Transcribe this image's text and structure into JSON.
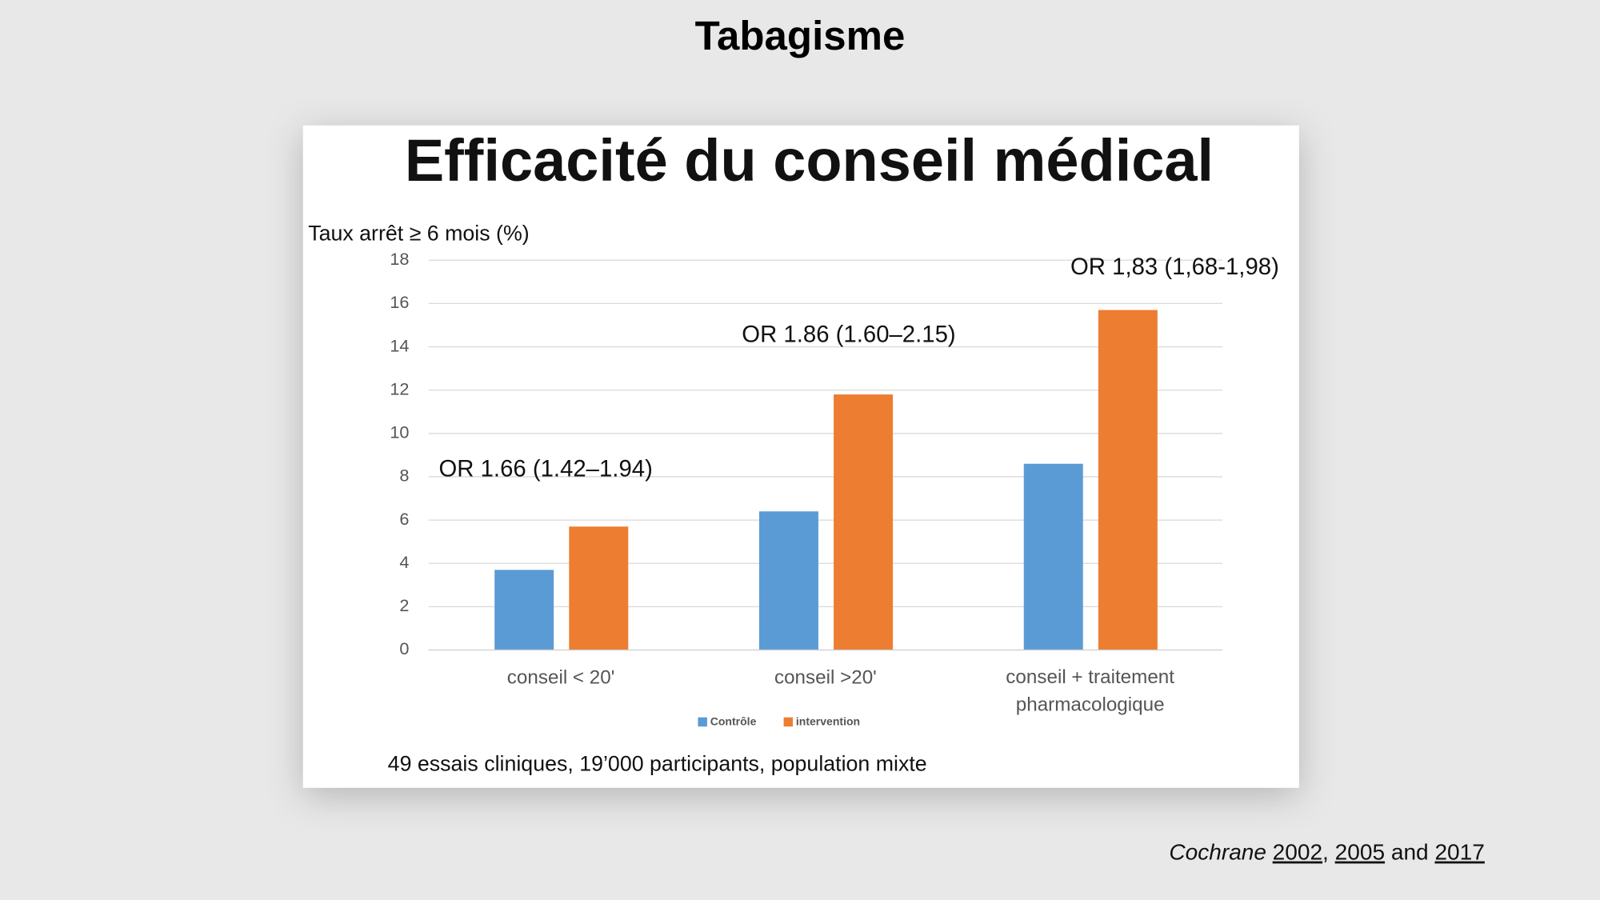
{
  "header": {
    "title": "Tabagisme"
  },
  "chart_data": {
    "type": "bar",
    "title": "Efficacité du conseil médical",
    "y_label": "Taux  arrêt ≥ 6 mois (%)",
    "categories": [
      "conseil < 20'",
      "conseil >20'",
      "conseil + traitement pharmacologique"
    ],
    "series": [
      {
        "name": "Contrôle",
        "color": "#5b9bd5",
        "values": [
          3.7,
          6.4,
          8.6
        ]
      },
      {
        "name": "intervention",
        "color": "#ed7d31",
        "values": [
          5.7,
          11.8,
          15.7
        ]
      }
    ],
    "ylim": [
      0,
      18
    ],
    "yticks": [
      0,
      2,
      4,
      6,
      8,
      10,
      12,
      14,
      16,
      18
    ],
    "grid": true,
    "legend": "bottom",
    "annotations": [
      "OR 1.66 (1.42–1.94)",
      "OR 1.86 (1.60–2.15)",
      "OR 1,83 (1,68-1,98)"
    ],
    "footnote": "49 essais cliniques, 19’000 participants, population mixte"
  },
  "citation": {
    "source": "Cochrane",
    "links": [
      "2002",
      "2005",
      "2017"
    ],
    "separators": [
      ", ",
      " and "
    ]
  }
}
